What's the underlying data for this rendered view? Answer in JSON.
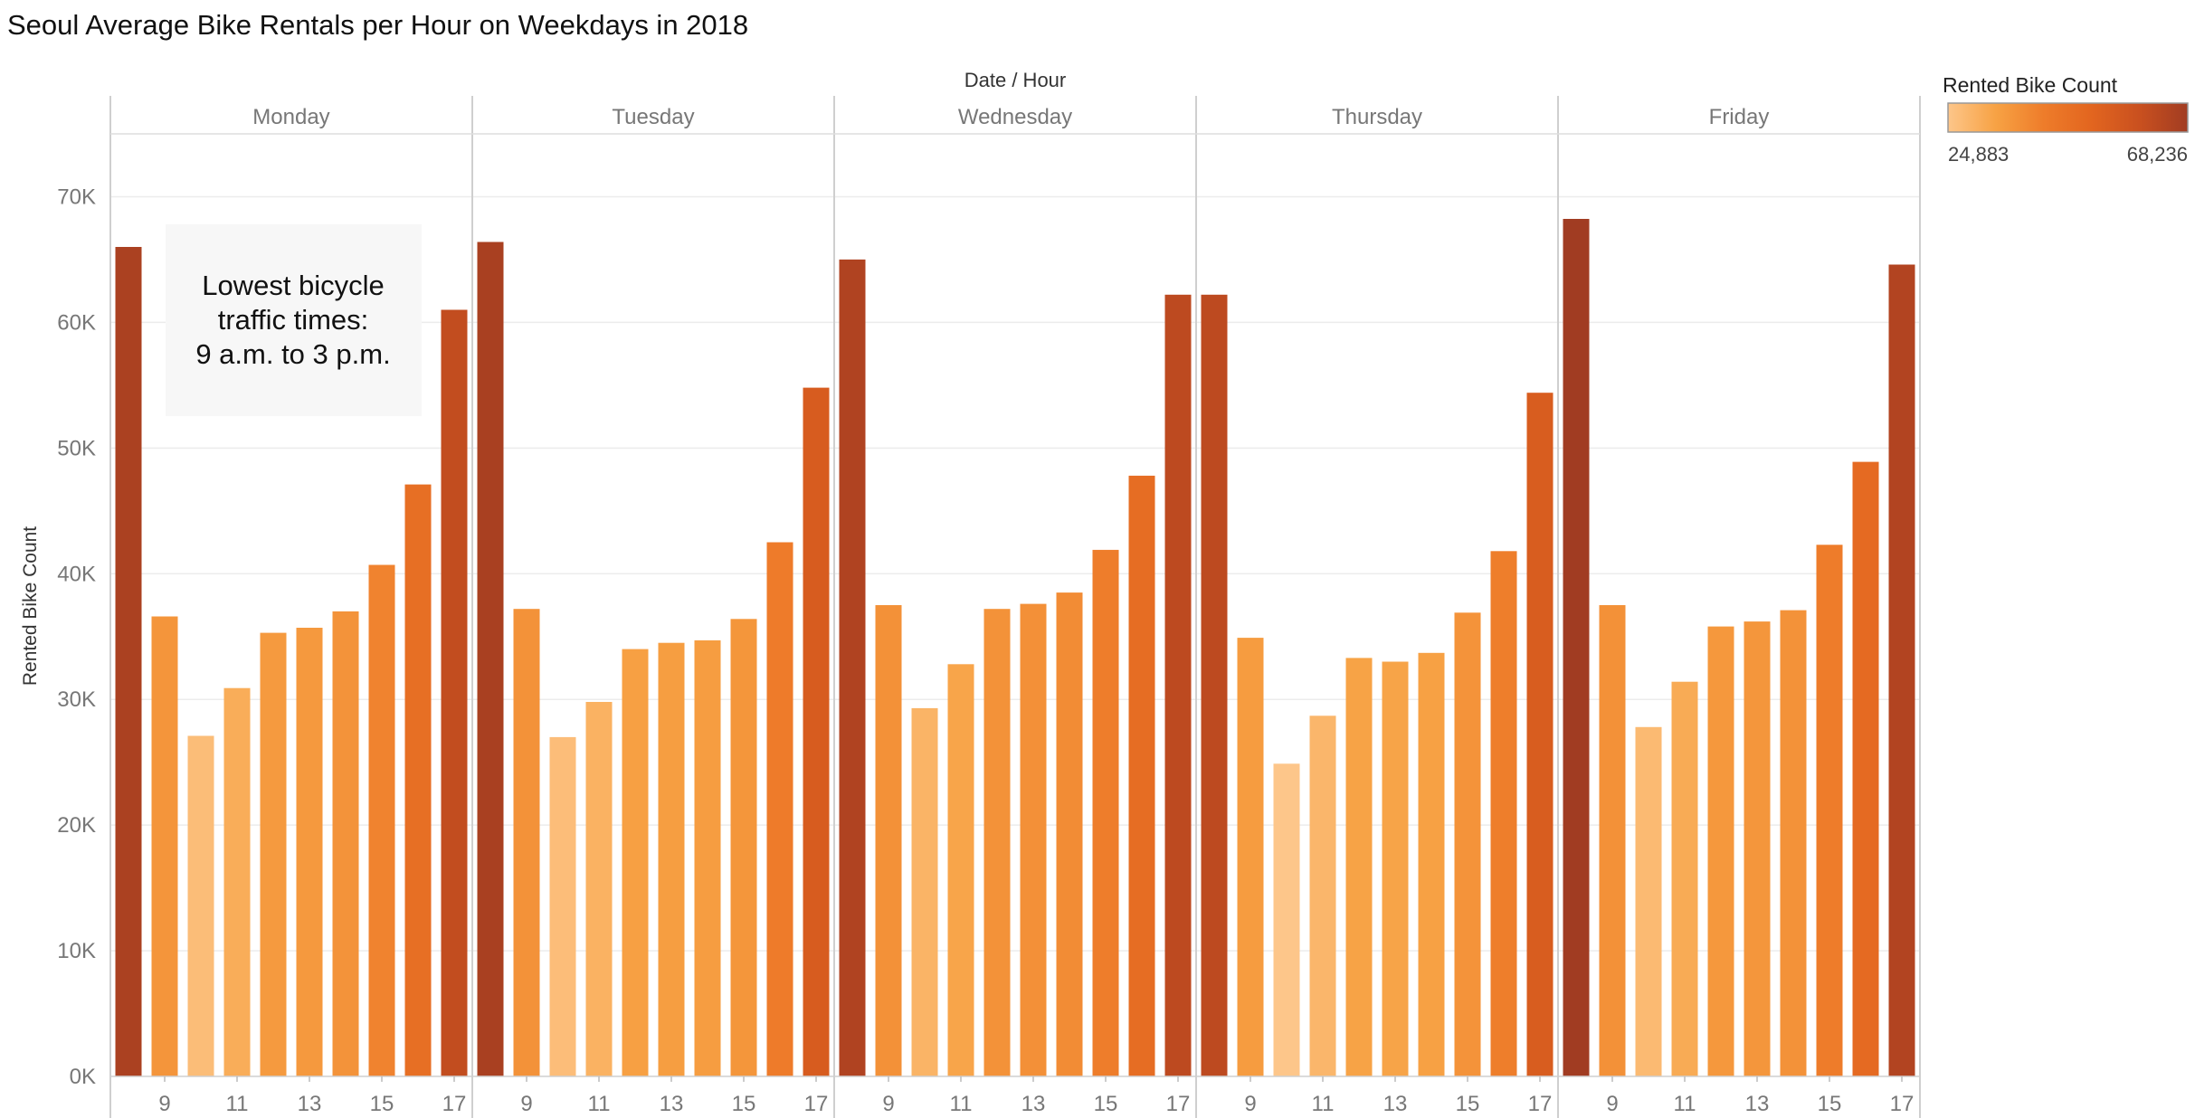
{
  "title": "Seoul Average Bike Rentals per Hour on Weekdays in 2018",
  "chart_data": {
    "type": "bar",
    "title": "Seoul Average Bike Rentals per Hour on Weekdays in 2018",
    "column_header": "Date / Hour",
    "ylabel": "Rented Bike Count",
    "ylim": [
      0,
      75000
    ],
    "yticks": [
      0,
      10000,
      20000,
      30000,
      40000,
      50000,
      60000,
      70000
    ],
    "ytick_labels": [
      "0K",
      "10K",
      "20K",
      "30K",
      "40K",
      "50K",
      "60K",
      "70K"
    ],
    "hours": [
      8,
      9,
      10,
      11,
      12,
      13,
      14,
      15,
      16,
      17
    ],
    "xtick_labels": [
      "9",
      "11",
      "13",
      "15",
      "17"
    ],
    "grid": true,
    "panels": [
      {
        "day": "Monday",
        "values": [
          66000,
          36600,
          27100,
          30900,
          35300,
          35700,
          37000,
          40700,
          47100,
          61000
        ]
      },
      {
        "day": "Tuesday",
        "values": [
          66400,
          37200,
          27000,
          29800,
          34000,
          34500,
          34700,
          36400,
          42500,
          54800
        ]
      },
      {
        "day": "Wednesday",
        "values": [
          65000,
          37500,
          29300,
          32800,
          37200,
          37600,
          38500,
          41900,
          47800,
          62200
        ]
      },
      {
        "day": "Thursday",
        "values": [
          62200,
          34900,
          24883,
          28700,
          33300,
          33000,
          33700,
          36900,
          41800,
          54400
        ]
      },
      {
        "day": "Friday",
        "values": [
          68236,
          37500,
          27800,
          31400,
          35800,
          36200,
          37100,
          42300,
          48900,
          64600
        ]
      }
    ],
    "color_legend": {
      "title": "Rented Bike Count",
      "min_label": "24,883",
      "max_label": "68,236",
      "min": 24883,
      "max": 68236,
      "colors": [
        "#fdc68a",
        "#f7a244",
        "#ee7c2a",
        "#e2651f",
        "#c9501f",
        "#a13c22"
      ],
      "placement": "top-right"
    },
    "annotation": {
      "lines": [
        "Lowest bicycle",
        "traffic times:",
        "9 a.m. to 3 p.m."
      ],
      "placement": "inside Monday panel, upper-left"
    }
  }
}
